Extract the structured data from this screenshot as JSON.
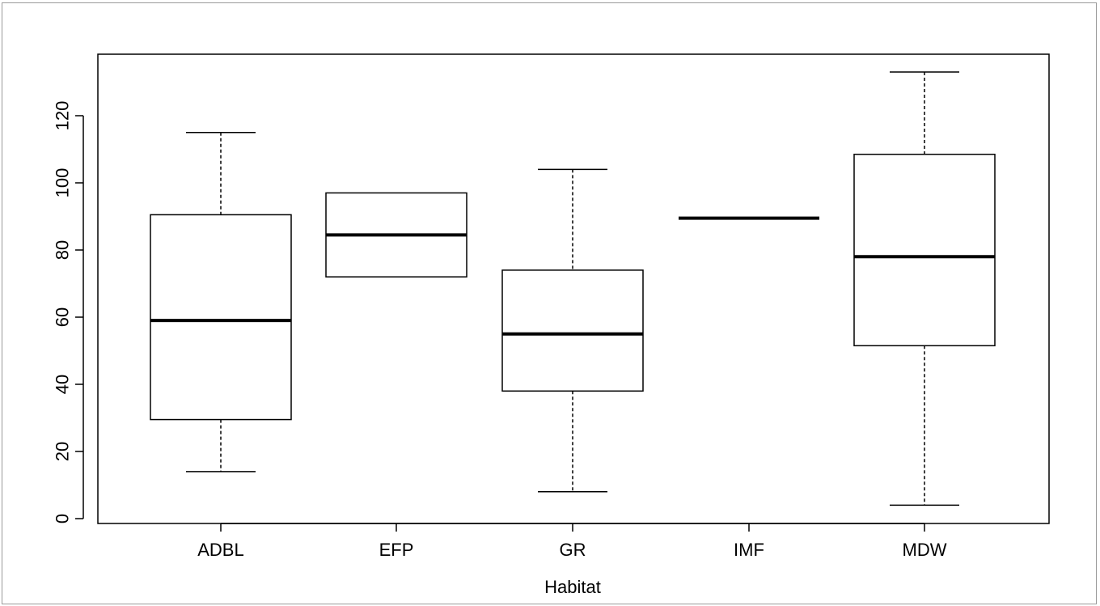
{
  "chart_data": {
    "type": "boxplot",
    "title": "",
    "xlabel": "Habitat",
    "ylabel": "",
    "ylim": [
      0,
      135
    ],
    "yticks": [
      0,
      20,
      40,
      60,
      80,
      100,
      120
    ],
    "categories": [
      "ADBL",
      "EFP",
      "GR",
      "IMF",
      "MDW"
    ],
    "boxes": [
      {
        "category": "ADBL",
        "whisker_low": 14,
        "q1": 29.5,
        "median": 59,
        "q3": 90.5,
        "whisker_high": 115
      },
      {
        "category": "EFP",
        "whisker_low": 72,
        "q1": 72,
        "median": 84.5,
        "q3": 97,
        "whisker_high": 97
      },
      {
        "category": "GR",
        "whisker_low": 8,
        "q1": 38,
        "median": 55,
        "q3": 74,
        "whisker_high": 104
      },
      {
        "category": "IMF",
        "whisker_low": 89.5,
        "q1": 89.5,
        "median": 89.5,
        "q3": 89.5,
        "whisker_high": 89.5
      },
      {
        "category": "MDW",
        "whisker_low": 4,
        "q1": 51.5,
        "median": 78,
        "q3": 108.5,
        "whisker_high": 133
      }
    ],
    "grid": false,
    "legend": "none",
    "colors": {
      "box_fill": "#ffffff",
      "stroke": "#000000"
    }
  }
}
